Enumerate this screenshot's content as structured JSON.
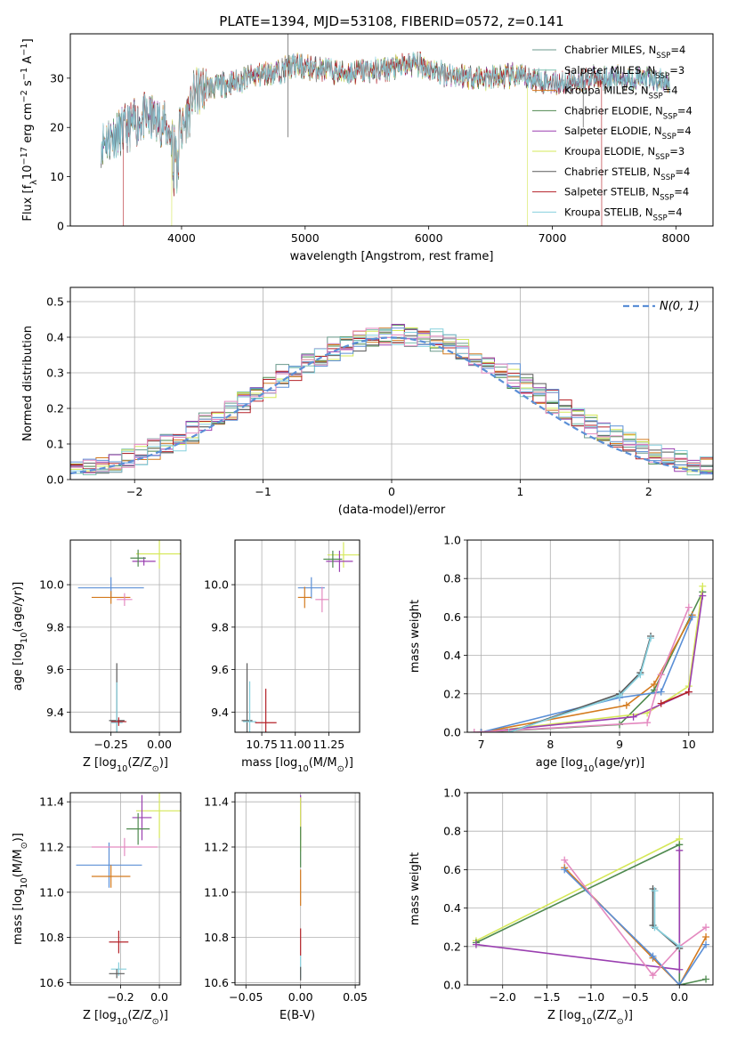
{
  "figure": {
    "title": "PLATE=1394, MJD=53108, FIBERID=0572, z=0.141"
  },
  "colors": {
    "Chabrier MILES": "#6b9a8c",
    "Salpeter MILES": "#7cc0b0",
    "Kroupa MILES": "#d47a1e",
    "Chabrier ELODIE": "#4f8a4f",
    "Salpeter ELODIE": "#9a3fb0",
    "Kroupa ELODIE": "#d6e85a",
    "Chabrier STELIB": "#5a5a5a",
    "Salpeter STELIB": "#b5232a",
    "Kroupa STELIB": "#86d0de",
    "extra_blue": "#5b8fd6",
    "extra_pink": "#e48ac0",
    "normal_curve": "#5b8fd6"
  },
  "chart_data": [
    {
      "id": "spectrum",
      "type": "line",
      "xlabel": "wavelength [Angstrom, rest frame]",
      "ylabel": "Flux [f_λ10^-17 erg cm^-2 s^-1 A^-1]",
      "xlim": [
        3100,
        8300
      ],
      "ylim": [
        0,
        39
      ],
      "xticks": [
        4000,
        5000,
        6000,
        7000,
        8000
      ],
      "yticks": [
        0,
        10,
        20,
        30
      ],
      "grid": false,
      "legend_position": "top-right",
      "legend": [
        {
          "label": "Chabrier MILES, N_SSP=4",
          "key": "Chabrier MILES"
        },
        {
          "label": "Salpeter MILES, N_SSP=3",
          "key": "Salpeter MILES"
        },
        {
          "label": "Kroupa MILES, N_SSP=4",
          "key": "Kroupa MILES"
        },
        {
          "label": "Chabrier ELODIE, N_SSP=4",
          "key": "Chabrier ELODIE"
        },
        {
          "label": "Salpeter ELODIE, N_SSP=4",
          "key": "Salpeter ELODIE"
        },
        {
          "label": "Kroupa ELODIE, N_SSP=3",
          "key": "Kroupa ELODIE"
        },
        {
          "label": "Chabrier STELIB, N_SSP=4",
          "key": "Chabrier STELIB"
        },
        {
          "label": "Salpeter STELIB, N_SSP=4",
          "key": "Salpeter STELIB"
        },
        {
          "label": "Kroupa STELIB, N_SSP=4",
          "key": "Kroupa STELIB"
        }
      ],
      "continuum": {
        "x": [
          3350,
          3500,
          3700,
          3850,
          3950,
          4050,
          4200,
          4400,
          4600,
          4800,
          4900,
          5100,
          5300,
          5500,
          5700,
          5900,
          6100,
          6300,
          6500,
          6700,
          6900,
          7100,
          7300,
          7500,
          7700,
          7900
        ],
        "y": [
          17,
          19,
          22,
          21,
          17,
          26,
          28,
          29,
          30.5,
          31.5,
          32.5,
          32,
          31,
          31.5,
          32,
          33,
          31,
          30.5,
          30,
          30.5,
          29.5,
          29,
          30,
          30,
          30,
          29.5
        ]
      },
      "drops": [
        {
          "key": "Salpeter STELIB",
          "from": 3530
        },
        {
          "key": "Kroupa ELODIE",
          "from": 3920
        },
        {
          "key": "Kroupa ELODIE",
          "to": 6800
        },
        {
          "key": "Salpeter STELIB",
          "to": 7400
        }
      ]
    },
    {
      "id": "residual_hist",
      "type": "line",
      "xlabel": "(data-model)/error",
      "ylabel": "Normed distribution",
      "xlim": [
        -2.5,
        2.5
      ],
      "ylim": [
        0,
        0.54
      ],
      "xticks": [
        -2,
        -1,
        0,
        1,
        2
      ],
      "yticks": [
        0.0,
        0.1,
        0.2,
        0.3,
        0.4,
        0.5
      ],
      "grid": true,
      "legend_position": "top-right",
      "legend_label": "N(0, 1)",
      "bin_width": 0.1,
      "bin_start": -2.5,
      "series_keys": [
        "Chabrier MILES",
        "Salpeter MILES",
        "Kroupa MILES",
        "Chabrier ELODIE",
        "Salpeter ELODIE",
        "Kroupa ELODIE",
        "Chabrier STELIB",
        "Salpeter STELIB",
        "Kroupa STELIB",
        "extra_blue",
        "extra_pink"
      ]
    },
    {
      "id": "age_vs_Z",
      "type": "scatter",
      "xlabel": "Z [log10(Z/Z⊙)]",
      "ylabel": "age [log10(age/yr)]",
      "xlim": [
        -0.46,
        0.11
      ],
      "ylim": [
        9.305,
        10.21
      ],
      "xticks": [
        -0.25,
        0.0
      ],
      "yticks": [
        9.4,
        9.6,
        9.8,
        10.0
      ],
      "grid": true,
      "points": [
        {
          "key": "extra_blue",
          "x": -0.25,
          "y": 9.985,
          "xerr": 0.17,
          "yerr": 0.05
        },
        {
          "key": "Kroupa MILES",
          "x": -0.25,
          "y": 9.94,
          "xerr": 0.1,
          "yerr": 0.03
        },
        {
          "key": "extra_pink",
          "x": -0.18,
          "y": 9.93,
          "xerr": 0.04,
          "yerr": 0.03
        },
        {
          "key": "Kroupa ELODIE",
          "x": 0.0,
          "y": 10.145,
          "xerr": 0.12,
          "yerr": 0.07
        },
        {
          "key": "Salpeter ELODIE",
          "x": -0.08,
          "y": 10.11,
          "xerr": 0.06,
          "yerr": 0.02
        },
        {
          "key": "Chabrier ELODIE",
          "x": -0.11,
          "y": 10.125,
          "xerr": 0.04,
          "yerr": 0.04
        },
        {
          "key": "Chabrier STELIB",
          "x": -0.22,
          "y": 9.36,
          "xerr": 0.04,
          "yerr": 0.27
        },
        {
          "key": "Kroupa STELIB",
          "x": -0.22,
          "y": 9.35,
          "xerr": 0.03,
          "yerr": 0.19
        },
        {
          "key": "Salpeter STELIB",
          "x": -0.21,
          "y": 9.355,
          "xerr": 0.04,
          "yerr": 0.02
        }
      ]
    },
    {
      "id": "age_vs_mass",
      "type": "scatter",
      "xlabel": "mass [log10(M/M⊙)]",
      "ylabel": "",
      "xlim": [
        10.55,
        11.48
      ],
      "ylim": [
        9.305,
        10.21
      ],
      "xticks": [
        10.75,
        11.0,
        11.25
      ],
      "yticks": [
        9.4,
        9.6,
        9.8,
        10.0
      ],
      "grid": true,
      "points": [
        {
          "key": "extra_blue",
          "x": 11.12,
          "y": 9.985,
          "xerr": 0.1,
          "yerr": 0.05
        },
        {
          "key": "Kroupa MILES",
          "x": 11.07,
          "y": 9.94,
          "xerr": 0.05,
          "yerr": 0.05
        },
        {
          "key": "extra_pink",
          "x": 11.2,
          "y": 9.93,
          "xerr": 0.05,
          "yerr": 0.06
        },
        {
          "key": "Kroupa ELODIE",
          "x": 11.36,
          "y": 10.14,
          "xerr": 0.12,
          "yerr": 0.06
        },
        {
          "key": "Salpeter ELODIE",
          "x": 11.33,
          "y": 10.11,
          "xerr": 0.1,
          "yerr": 0.05
        },
        {
          "key": "Chabrier ELODIE",
          "x": 11.28,
          "y": 10.12,
          "xerr": 0.07,
          "yerr": 0.04
        },
        {
          "key": "Chabrier STELIB",
          "x": 10.64,
          "y": 9.36,
          "xerr": 0.04,
          "yerr": 0.27
        },
        {
          "key": "Kroupa STELIB",
          "x": 10.66,
          "y": 9.355,
          "xerr": 0.05,
          "yerr": 0.19
        },
        {
          "key": "Salpeter STELIB",
          "x": 10.78,
          "y": 9.35,
          "xerr": 0.08,
          "yerr": 0.16
        }
      ]
    },
    {
      "id": "weight_vs_age",
      "type": "line",
      "xlabel": "age [log10(age/yr)]",
      "ylabel": "mass weight",
      "xlim": [
        6.8,
        10.35
      ],
      "ylim": [
        0,
        1.0
      ],
      "xticks": [
        7,
        8,
        9,
        10
      ],
      "yticks": [
        0.0,
        0.2,
        0.4,
        0.6,
        0.8,
        1.0
      ],
      "grid": true,
      "series": [
        {
          "key": "Chabrier ELODIE",
          "x": [
            7.0,
            9.0,
            9.5,
            10.2
          ],
          "y": [
            0.0,
            0.04,
            0.22,
            0.73
          ]
        },
        {
          "key": "Kroupa ELODIE",
          "x": [
            7.0,
            9.4,
            10.0,
            10.2
          ],
          "y": [
            0.0,
            0.1,
            0.24,
            0.76
          ]
        },
        {
          "key": "Salpeter ELODIE",
          "x": [
            7.0,
            9.2,
            10.0,
            10.2
          ],
          "y": [
            0.0,
            0.08,
            0.21,
            0.71
          ]
        },
        {
          "key": "Kroupa MILES",
          "x": [
            7.0,
            9.1,
            9.5,
            10.05
          ],
          "y": [
            0.0,
            0.14,
            0.25,
            0.61
          ]
        },
        {
          "key": "extra_blue",
          "x": [
            7.0,
            9.0,
            9.6,
            10.05
          ],
          "y": [
            0.0,
            0.18,
            0.21,
            0.6
          ]
        },
        {
          "key": "extra_pink",
          "x": [
            6.9,
            9.4,
            9.6,
            10.0
          ],
          "y": [
            0.0,
            0.05,
            0.3,
            0.65
          ]
        },
        {
          "key": "Chabrier STELIB",
          "x": [
            7.4,
            9.0,
            9.3,
            9.45
          ],
          "y": [
            0.0,
            0.2,
            0.31,
            0.5
          ]
        },
        {
          "key": "Kroupa STELIB",
          "x": [
            7.4,
            9.0,
            9.3,
            9.45
          ],
          "y": [
            0.0,
            0.19,
            0.3,
            0.49
          ]
        },
        {
          "key": "Salpeter STELIB",
          "x": [
            9.6,
            10.0
          ],
          "y": [
            0.15,
            0.21
          ]
        }
      ]
    },
    {
      "id": "mass_vs_Z",
      "type": "scatter",
      "xlabel": "Z [log10(Z/Z⊙)]",
      "ylabel": "mass [log10(M/M⊙)]",
      "xlim": [
        -0.46,
        0.11
      ],
      "ylim": [
        10.59,
        11.44
      ],
      "xticks": [
        -0.2,
        0.0
      ],
      "yticks": [
        10.6,
        10.8,
        11.0,
        11.2,
        11.4
      ],
      "grid": true,
      "points": [
        {
          "key": "extra_blue",
          "x": -0.26,
          "y": 11.12,
          "xerr": 0.17,
          "yerr": 0.1
        },
        {
          "key": "Kroupa MILES",
          "x": -0.25,
          "y": 11.07,
          "xerr": 0.1,
          "yerr": 0.05
        },
        {
          "key": "extra_pink",
          "x": -0.18,
          "y": 11.2,
          "xerr": 0.17,
          "yerr": 0.04
        },
        {
          "key": "Kroupa ELODIE",
          "x": 0.0,
          "y": 11.36,
          "xerr": 0.12,
          "yerr": 0.12
        },
        {
          "key": "Salpeter ELODIE",
          "x": -0.09,
          "y": 11.33,
          "xerr": 0.05,
          "yerr": 0.1
        },
        {
          "key": "Chabrier ELODIE",
          "x": -0.11,
          "y": 11.28,
          "xerr": 0.06,
          "yerr": 0.07
        },
        {
          "key": "Salpeter STELIB",
          "x": -0.21,
          "y": 10.78,
          "xerr": 0.05,
          "yerr": 0.05
        },
        {
          "key": "Kroupa STELIB",
          "x": -0.21,
          "y": 10.66,
          "xerr": 0.04,
          "yerr": 0.03
        },
        {
          "key": "Chabrier STELIB",
          "x": -0.22,
          "y": 10.64,
          "xerr": 0.04,
          "yerr": 0.02
        }
      ]
    },
    {
      "id": "mass_vs_ebv",
      "type": "scatter",
      "xlabel": "E(B-V)",
      "ylabel": "",
      "xlim": [
        -0.06,
        0.054
      ],
      "ylim": [
        10.59,
        11.44
      ],
      "xticks": [
        -0.05,
        0.0,
        0.05
      ],
      "yticks": [
        10.6,
        10.8,
        11.0,
        11.2,
        11.4
      ],
      "grid": true,
      "points": [
        {
          "key": "Salpeter ELODIE",
          "x": 0.0,
          "y": 11.33,
          "xerr": 0.0,
          "yerr": 0.1
        },
        {
          "key": "Kroupa ELODIE",
          "x": 0.0,
          "y": 11.3,
          "xerr": 0.0,
          "yerr": 0.12
        },
        {
          "key": "Chabrier ELODIE",
          "x": 0.0,
          "y": 11.2,
          "xerr": 0.0,
          "yerr": 0.09
        },
        {
          "key": "Kroupa MILES",
          "x": 0.0,
          "y": 11.02,
          "xerr": 0.0,
          "yerr": 0.08
        },
        {
          "key": "Salpeter STELIB",
          "x": 0.0,
          "y": 10.78,
          "xerr": 0.0,
          "yerr": 0.06
        },
        {
          "key": "Kroupa STELIB",
          "x": 0.0,
          "y": 10.67,
          "xerr": 0.0,
          "yerr": 0.05
        },
        {
          "key": "Chabrier STELIB",
          "x": 0.0,
          "y": 10.64,
          "xerr": 0.0,
          "yerr": 0.03
        }
      ]
    },
    {
      "id": "weight_vs_Z",
      "type": "line",
      "xlabel": "Z [log10(Z/Z⊙)]",
      "ylabel": "mass weight",
      "xlim": [
        -2.4,
        0.38
      ],
      "ylim": [
        0,
        1.0
      ],
      "xticks": [
        -2.0,
        -1.5,
        -1.0,
        -0.5,
        0.0
      ],
      "yticks": [
        0.0,
        0.2,
        0.4,
        0.6,
        0.8,
        1.0
      ],
      "grid": true,
      "series": [
        {
          "key": "Kroupa ELODIE",
          "x": [
            -2.3,
            0.0,
            0.0,
            0.0
          ],
          "y": [
            0.23,
            0.76,
            0.0,
            0.0
          ]
        },
        {
          "key": "Chabrier ELODIE",
          "x": [
            -2.3,
            0.0,
            0.0,
            0.3
          ],
          "y": [
            0.22,
            0.73,
            0.0,
            0.03
          ]
        },
        {
          "key": "Salpeter ELODIE",
          "x": [
            -2.3,
            0.0,
            0.0
          ],
          "y": [
            0.21,
            0.08,
            0.7
          ]
        },
        {
          "key": "Kroupa MILES",
          "x": [
            -1.3,
            -0.3,
            0.0,
            0.3
          ],
          "y": [
            0.61,
            0.14,
            0.0,
            0.25
          ]
        },
        {
          "key": "extra_blue",
          "x": [
            -1.3,
            -0.3,
            0.0,
            0.3
          ],
          "y": [
            0.6,
            0.15,
            0.0,
            0.21
          ]
        },
        {
          "key": "extra_pink",
          "x": [
            -1.3,
            -0.3,
            0.0,
            0.3
          ],
          "y": [
            0.65,
            0.05,
            0.2,
            0.3
          ]
        },
        {
          "key": "Chabrier STELIB",
          "x": [
            -0.3,
            -0.3,
            0.0
          ],
          "y": [
            0.5,
            0.31,
            0.19
          ]
        },
        {
          "key": "Kroupa STELIB",
          "x": [
            -0.28,
            -0.28,
            0.0
          ],
          "y": [
            0.49,
            0.3,
            0.2
          ]
        }
      ]
    }
  ]
}
